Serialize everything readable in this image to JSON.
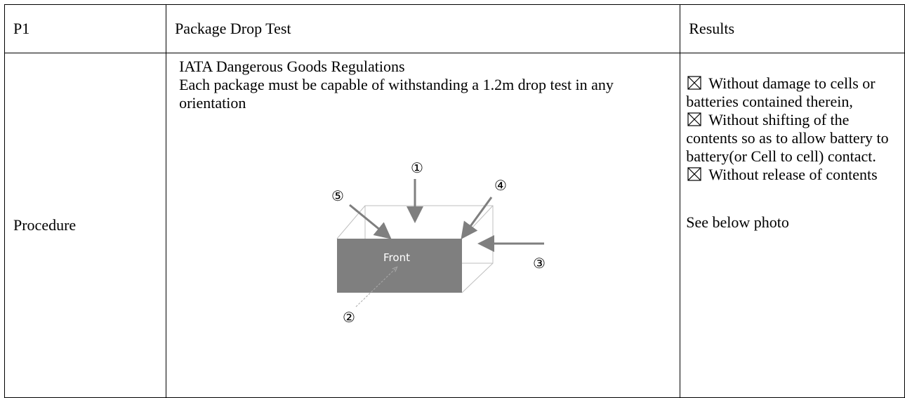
{
  "table": {
    "header": [
      "P1",
      "Package Drop Test",
      "Results"
    ],
    "row": {
      "label": "Procedure",
      "heading": "IATA Dangerous Goods Regulations",
      "text": "Each package must be capable of withstanding a 1.2m drop test in any orientation",
      "diagram": {
        "labels": [
          "①",
          "②",
          "③",
          "④",
          "⑤"
        ],
        "front": "Front"
      },
      "results": [
        "Without damage to cells or batteries contained therein,",
        "Without shifting of the contents so as to allow battery to battery(or Cell to cell) contact.",
        "Without release of contents"
      ],
      "note": "See below photo"
    }
  }
}
